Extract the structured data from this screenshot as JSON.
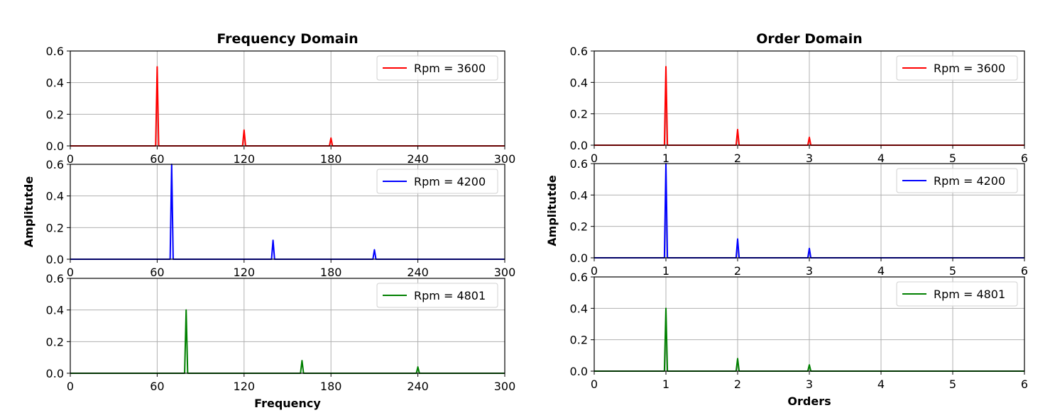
{
  "chart_data": [
    {
      "type": "line",
      "title": "Frequency Domain",
      "xlabel": "Frequency",
      "ylabel": "Amplitutde",
      "xlim": [
        0,
        300
      ],
      "ylim": [
        0,
        0.6
      ],
      "xticks": [
        0,
        60,
        120,
        180,
        240,
        300
      ],
      "yticks": [
        0.0,
        0.2,
        0.4,
        0.6
      ],
      "grid": true,
      "legend_position": "top-right",
      "panels": [
        {
          "legend": "Rpm = 3600",
          "color": "#ff0000",
          "peaks": [
            {
              "x": 60,
              "y": 0.5
            },
            {
              "x": 120,
              "y": 0.1
            },
            {
              "x": 180,
              "y": 0.05
            }
          ]
        },
        {
          "legend": "Rpm = 4200",
          "color": "#0000ff",
          "peaks": [
            {
              "x": 70,
              "y": 0.6
            },
            {
              "x": 140,
              "y": 0.12
            },
            {
              "x": 210,
              "y": 0.06
            }
          ]
        },
        {
          "legend": "Rpm = 4801",
          "color": "#008000",
          "peaks": [
            {
              "x": 80,
              "y": 0.4
            },
            {
              "x": 160,
              "y": 0.08
            },
            {
              "x": 240,
              "y": 0.04
            }
          ]
        }
      ]
    },
    {
      "type": "line",
      "title": "Order Domain",
      "xlabel": "Orders",
      "ylabel": "Amplitutde",
      "xlim": [
        0,
        6
      ],
      "ylim": [
        0,
        0.6
      ],
      "xticks": [
        0,
        1,
        2,
        3,
        4,
        5,
        6
      ],
      "yticks": [
        0.0,
        0.2,
        0.4,
        0.6
      ],
      "grid": true,
      "legend_position": "top-right",
      "panels": [
        {
          "legend": "Rpm = 3600",
          "color": "#ff0000",
          "peaks": [
            {
              "x": 1,
              "y": 0.5
            },
            {
              "x": 2,
              "y": 0.1
            },
            {
              "x": 3,
              "y": 0.05
            }
          ]
        },
        {
          "legend": "Rpm = 4200",
          "color": "#0000ff",
          "peaks": [
            {
              "x": 1,
              "y": 0.6
            },
            {
              "x": 2,
              "y": 0.12
            },
            {
              "x": 3,
              "y": 0.06
            }
          ]
        },
        {
          "legend": "Rpm = 4801",
          "color": "#008000",
          "peaks": [
            {
              "x": 1,
              "y": 0.4
            },
            {
              "x": 2,
              "y": 0.08
            },
            {
              "x": 3,
              "y": 0.04
            }
          ]
        }
      ]
    }
  ]
}
